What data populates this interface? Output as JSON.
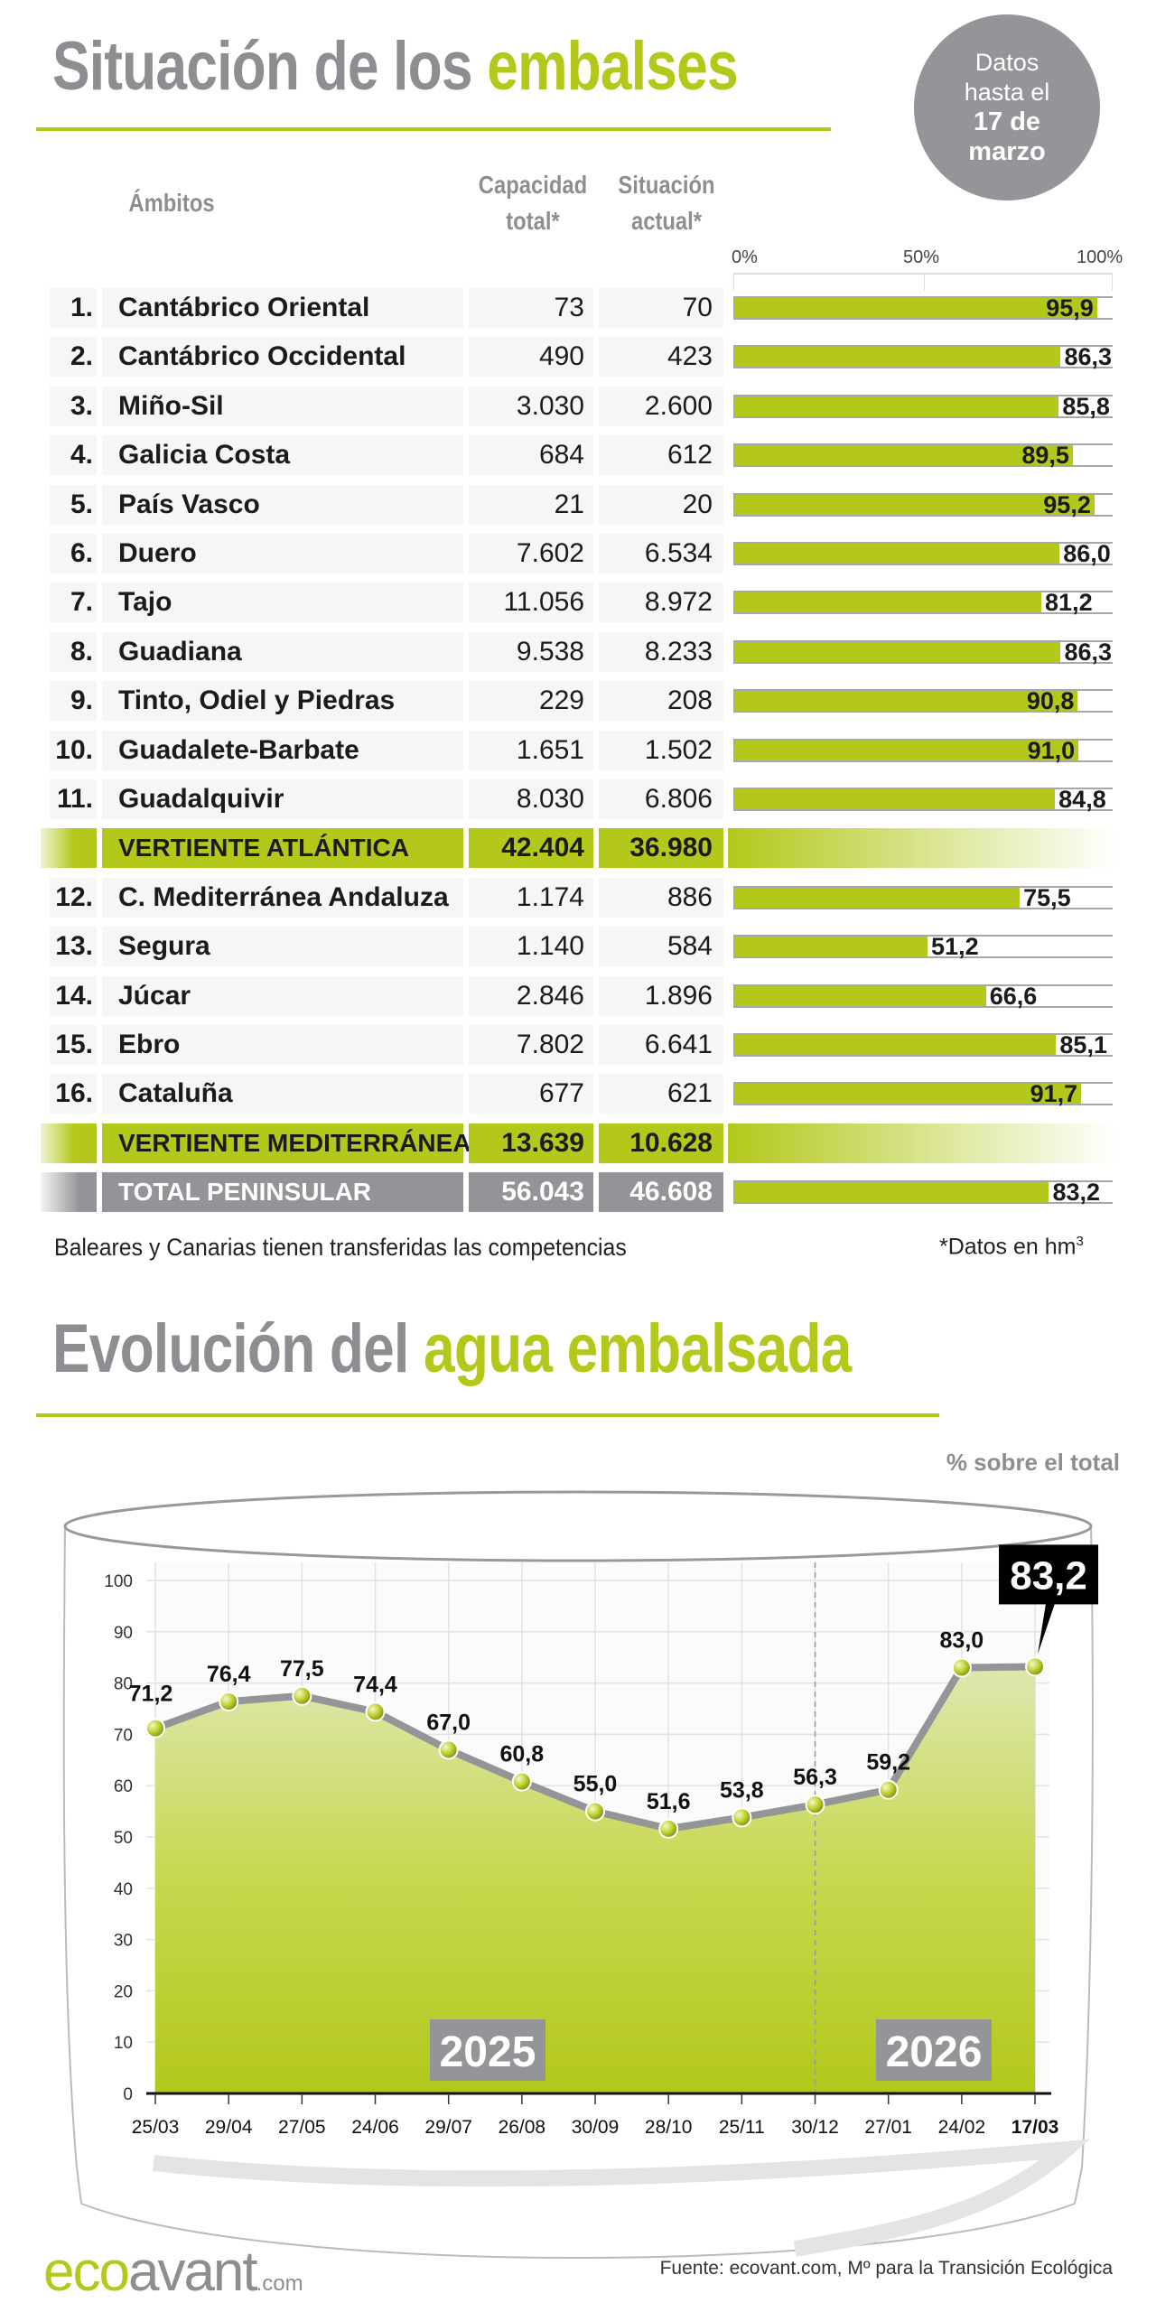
{
  "header": {
    "title_part1": "Situación de los ",
    "title_highlight": "embalses",
    "date_badge": {
      "line1": "Datos",
      "line2": "hasta el",
      "line3": "17 de",
      "line4": "marzo"
    }
  },
  "table": {
    "headers": {
      "ambitos": "Ámbitos",
      "capacidad_1": "Capacidad",
      "capacidad_2": "total*",
      "situacion_1": "Situación",
      "situacion_2": "actual*"
    },
    "scale_labels": [
      "0%",
      "50%",
      "100%"
    ],
    "atlantic_rows": [
      {
        "num": "1.",
        "name": "Cantábrico Oriental",
        "capacity": "73",
        "current": "70",
        "percent": 95.9
      },
      {
        "num": "2.",
        "name": "Cantábrico Occidental",
        "capacity": "490",
        "current": "423",
        "percent": 86.3
      },
      {
        "num": "3.",
        "name": "Miño-Sil",
        "capacity": "3.030",
        "current": "2.600",
        "percent": 85.8
      },
      {
        "num": "4.",
        "name": "Galicia Costa",
        "capacity": "684",
        "current": "612",
        "percent": 89.5
      },
      {
        "num": "5.",
        "name": "País Vasco",
        "capacity": "21",
        "current": "20",
        "percent": 95.2
      },
      {
        "num": "6.",
        "name": "Duero",
        "capacity": "7.602",
        "current": "6.534",
        "percent": 86.0
      },
      {
        "num": "7.",
        "name": "Tajo",
        "capacity": "11.056",
        "current": "8.972",
        "percent": 81.2
      },
      {
        "num": "8.",
        "name": "Guadiana",
        "capacity": "9.538",
        "current": "8.233",
        "percent": 86.3
      },
      {
        "num": "9.",
        "name": "Tinto, Odiel y Piedras",
        "capacity": "229",
        "current": "208",
        "percent": 90.8
      },
      {
        "num": "10.",
        "name": "Guadalete-Barbate",
        "capacity": "1.651",
        "current": "1.502",
        "percent": 91.0
      },
      {
        "num": "11.",
        "name": "Guadalquivir",
        "capacity": "8.030",
        "current": "6.806",
        "percent": 84.8
      }
    ],
    "atlantic_total": {
      "name": "VERTIENTE ATLÁNTICA",
      "capacity": "42.404",
      "current": "36.980"
    },
    "mediterranean_rows": [
      {
        "num": "12.",
        "name": "C. Mediterránea Andaluza",
        "capacity": "1.174",
        "current": "886",
        "percent": 75.5
      },
      {
        "num": "13.",
        "name": "Segura",
        "capacity": "1.140",
        "current": "584",
        "percent": 51.2
      },
      {
        "num": "14.",
        "name": "Júcar",
        "capacity": "2.846",
        "current": "1.896",
        "percent": 66.6
      },
      {
        "num": "15.",
        "name": "Ebro",
        "capacity": "7.802",
        "current": "6.641",
        "percent": 85.1
      },
      {
        "num": "16.",
        "name": "Cataluña",
        "capacity": "677",
        "current": "621",
        "percent": 91.7
      }
    ],
    "mediterranean_total": {
      "name": "VERTIENTE MEDITERRÁNEA",
      "capacity": "13.639",
      "current": "10.628"
    },
    "peninsular_total": {
      "name": "TOTAL PENINSULAR",
      "capacity": "56.043",
      "current": "46.608",
      "percent": 83.2
    },
    "footnote_left": "Baleares y Canarias tienen transferidas las competencias",
    "footnote_right": "*Datos en hm",
    "footnote_right_sup": "3"
  },
  "evolution": {
    "title_part1": "Evolución del ",
    "title_highlight": "agua embalsada"
  },
  "chart_data": {
    "type": "area",
    "unit_label": "% sobre el total",
    "categories": [
      "25/03",
      "29/04",
      "27/05",
      "24/06",
      "29/07",
      "26/08",
      "30/09",
      "28/10",
      "25/11",
      "30/12",
      "27/01",
      "24/02",
      "17/03"
    ],
    "values": [
      71.2,
      76.4,
      77.5,
      74.4,
      67.0,
      60.8,
      55.0,
      51.6,
      53.8,
      56.3,
      59.2,
      83.0,
      83.2
    ],
    "value_labels": [
      "71,2",
      "76,4",
      "77,5",
      "74,4",
      "67,0",
      "60,8",
      "55,0",
      "51,6",
      "53,8",
      "56,3",
      "59,2",
      "83,0",
      "83,2"
    ],
    "highlight_label": "83,2",
    "ylim": [
      0,
      100
    ],
    "yticks": [
      0,
      10,
      20,
      30,
      40,
      50,
      60,
      70,
      80,
      90,
      100
    ],
    "year_labels": [
      {
        "label": "2025"
      },
      {
        "label": "2026"
      }
    ],
    "year_divider_at": "30/12",
    "grid": true,
    "colors": {
      "fill": "#b3c81b",
      "line": "#939598",
      "marker": "#c5d63a"
    }
  },
  "footer": {
    "logo_eco": "eco",
    "logo_avant": "avant",
    "logo_com": ".com",
    "source": "Fuente: ecovant.com, Mº para la Transición Ecológica"
  }
}
